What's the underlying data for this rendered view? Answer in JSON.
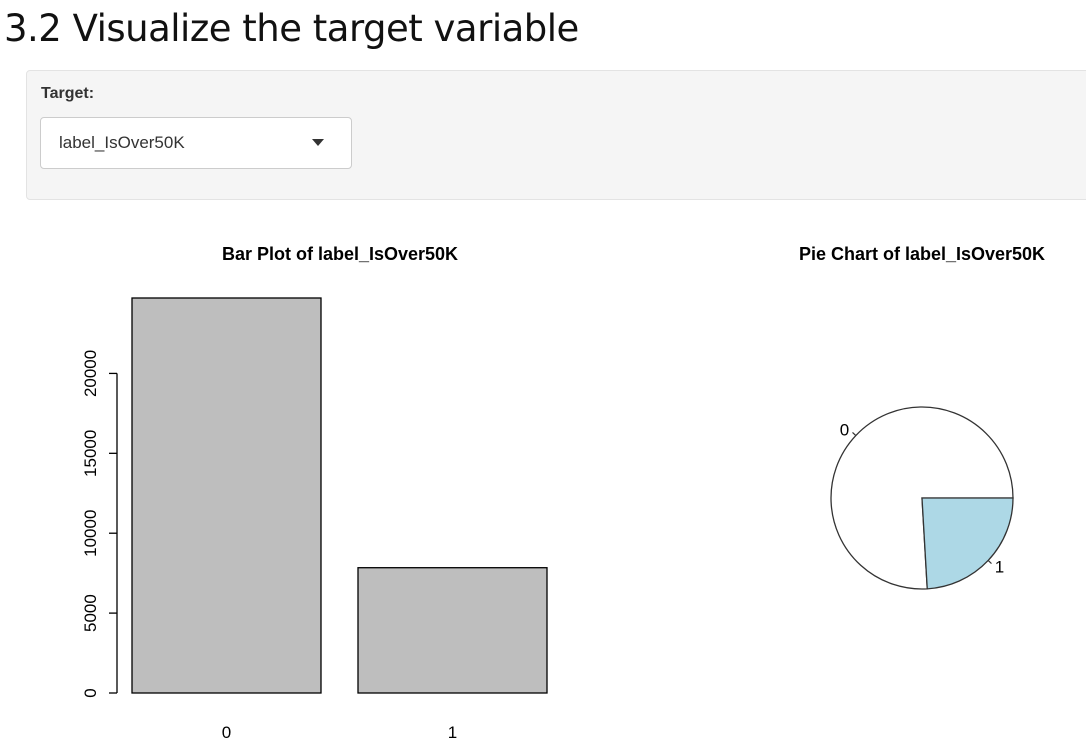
{
  "header": {
    "title": "3.2 Visualize the target variable"
  },
  "controls": {
    "target_label": "Target:",
    "target_value": "label_IsOver50K"
  },
  "colors": {
    "bar_fill": "#bebebe",
    "pie_slice_0": "#ffffff",
    "pie_slice_1": "#add8e6",
    "stroke": "#000000"
  },
  "chart_data": [
    {
      "type": "bar",
      "title": "Bar Plot of label_IsOver50K",
      "categories": [
        "0",
        "1"
      ],
      "values": [
        24720,
        7841
      ],
      "xlabel": "",
      "ylabel": "",
      "ylim": [
        0,
        24720
      ],
      "yticks": [
        0,
        5000,
        10000,
        15000,
        20000
      ],
      "grid": false,
      "legend": "none"
    },
    {
      "type": "pie",
      "title": "Pie Chart of label_IsOver50K",
      "labels": [
        "0",
        "1"
      ],
      "values": [
        24720,
        7841
      ],
      "legend": "none"
    }
  ]
}
